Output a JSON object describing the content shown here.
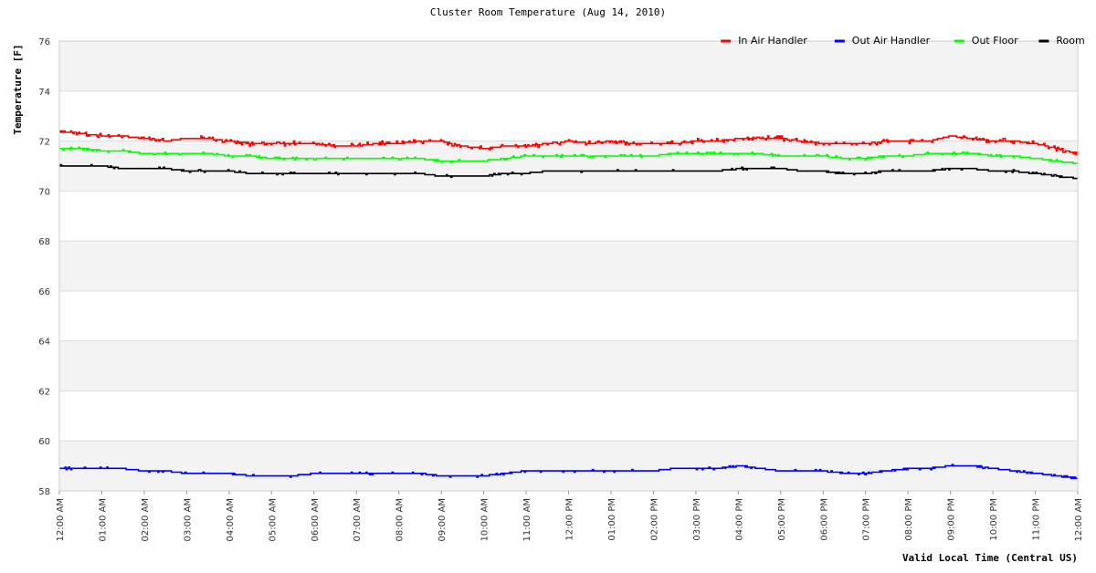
{
  "chart_data": {
    "type": "line",
    "title": "Cluster Room Temperature (Aug 14, 2010)",
    "xlabel": "Valid Local Time (Central US)",
    "ylabel": "Temperature [F]",
    "ylim": [
      58,
      76
    ],
    "yticks": [
      58,
      60,
      62,
      64,
      66,
      68,
      70,
      72,
      74,
      76
    ],
    "xlim": [
      0,
      24
    ],
    "xticks": [
      "12:00 AM",
      "01:00 AM",
      "02:00 AM",
      "03:00 AM",
      "04:00 AM",
      "05:00 AM",
      "06:00 AM",
      "07:00 AM",
      "08:00 AM",
      "09:00 AM",
      "10:00 AM",
      "11:00 AM",
      "12:00 PM",
      "01:00 PM",
      "02:00 PM",
      "03:00 PM",
      "04:00 PM",
      "05:00 PM",
      "06:00 PM",
      "07:00 PM",
      "08:00 PM",
      "09:00 PM",
      "10:00 PM",
      "11:00 PM",
      "12:00 AM"
    ],
    "legend_position": "top-right",
    "grid": "alternating horizontal bands",
    "series": [
      {
        "name": "In Air Handler",
        "color": "#ff0000",
        "x": [
          0,
          0.5,
          1,
          1.5,
          2,
          2.5,
          3,
          3.5,
          4,
          4.5,
          5,
          5.5,
          6,
          6.5,
          7,
          7.5,
          8,
          8.5,
          9,
          9.5,
          10,
          10.5,
          11,
          11.5,
          12,
          12.5,
          13,
          13.5,
          14,
          14.5,
          15,
          15.5,
          16,
          16.5,
          17,
          17.5,
          18,
          18.5,
          19,
          19.5,
          20,
          20.5,
          21,
          21.5,
          22,
          22.5,
          23,
          23.5,
          24
        ],
        "y": [
          72.4,
          72.3,
          72.2,
          72.2,
          72.1,
          72.0,
          72.1,
          72.1,
          72.0,
          71.9,
          71.9,
          71.9,
          71.9,
          71.8,
          71.8,
          71.9,
          71.9,
          72.0,
          72.0,
          71.8,
          71.7,
          71.8,
          71.8,
          71.9,
          72.0,
          71.9,
          72.0,
          71.9,
          71.9,
          71.9,
          72.0,
          72.0,
          72.1,
          72.1,
          72.1,
          72.0,
          71.9,
          71.9,
          71.9,
          72.0,
          72.0,
          72.0,
          72.2,
          72.1,
          72.0,
          72.0,
          71.9,
          71.7,
          71.5
        ]
      },
      {
        "name": "Out Air Handler",
        "color": "#0000ff",
        "x": [
          0,
          0.5,
          1,
          1.5,
          2,
          2.5,
          3,
          3.5,
          4,
          4.5,
          5,
          5.5,
          6,
          6.5,
          7,
          7.5,
          8,
          8.5,
          9,
          9.5,
          10,
          10.5,
          11,
          11.5,
          12,
          12.5,
          13,
          13.5,
          14,
          14.5,
          15,
          15.5,
          16,
          16.5,
          17,
          17.5,
          18,
          18.5,
          19,
          19.5,
          20,
          20.5,
          21,
          21.5,
          22,
          22.5,
          23,
          23.5,
          24
        ],
        "y": [
          58.9,
          58.9,
          58.9,
          58.9,
          58.8,
          58.8,
          58.7,
          58.7,
          58.7,
          58.6,
          58.6,
          58.6,
          58.7,
          58.7,
          58.7,
          58.7,
          58.7,
          58.7,
          58.6,
          58.6,
          58.6,
          58.7,
          58.8,
          58.8,
          58.8,
          58.8,
          58.8,
          58.8,
          58.8,
          58.9,
          58.9,
          58.9,
          59.0,
          58.9,
          58.8,
          58.8,
          58.8,
          58.7,
          58.7,
          58.8,
          58.9,
          58.9,
          59.0,
          59.0,
          58.9,
          58.8,
          58.7,
          58.6,
          58.5
        ]
      },
      {
        "name": "Out Floor",
        "color": "#00ff00",
        "x": [
          0,
          0.5,
          1,
          1.5,
          2,
          2.5,
          3,
          3.5,
          4,
          4.5,
          5,
          5.5,
          6,
          6.5,
          7,
          7.5,
          8,
          8.5,
          9,
          9.5,
          10,
          10.5,
          11,
          11.5,
          12,
          12.5,
          13,
          13.5,
          14,
          14.5,
          15,
          15.5,
          16,
          16.5,
          17,
          17.5,
          18,
          18.5,
          19,
          19.5,
          20,
          20.5,
          21,
          21.5,
          22,
          22.5,
          23,
          23.5,
          24
        ],
        "y": [
          71.7,
          71.7,
          71.6,
          71.6,
          71.5,
          71.5,
          71.5,
          71.5,
          71.4,
          71.4,
          71.3,
          71.3,
          71.3,
          71.3,
          71.3,
          71.3,
          71.3,
          71.3,
          71.2,
          71.2,
          71.2,
          71.3,
          71.4,
          71.4,
          71.4,
          71.4,
          71.4,
          71.4,
          71.4,
          71.5,
          71.5,
          71.5,
          71.5,
          71.5,
          71.4,
          71.4,
          71.4,
          71.3,
          71.3,
          71.4,
          71.4,
          71.5,
          71.5,
          71.5,
          71.4,
          71.4,
          71.3,
          71.2,
          71.1
        ]
      },
      {
        "name": "Room",
        "color": "#000000",
        "x": [
          0,
          0.5,
          1,
          1.5,
          2,
          2.5,
          3,
          3.5,
          4,
          4.5,
          5,
          5.5,
          6,
          6.5,
          7,
          7.5,
          8,
          8.5,
          9,
          9.5,
          10,
          10.5,
          11,
          11.5,
          12,
          12.5,
          13,
          13.5,
          14,
          14.5,
          15,
          15.5,
          16,
          16.5,
          17,
          17.5,
          18,
          18.5,
          19,
          19.5,
          20,
          20.5,
          21,
          21.5,
          22,
          22.5,
          23,
          23.5,
          24
        ],
        "y": [
          71.0,
          71.0,
          71.0,
          70.9,
          70.9,
          70.9,
          70.8,
          70.8,
          70.8,
          70.7,
          70.7,
          70.7,
          70.7,
          70.7,
          70.7,
          70.7,
          70.7,
          70.7,
          70.6,
          70.6,
          70.6,
          70.7,
          70.7,
          70.8,
          70.8,
          70.8,
          70.8,
          70.8,
          70.8,
          70.8,
          70.8,
          70.8,
          70.9,
          70.9,
          70.9,
          70.8,
          70.8,
          70.7,
          70.7,
          70.8,
          70.8,
          70.8,
          70.9,
          70.9,
          70.8,
          70.8,
          70.7,
          70.6,
          70.5
        ]
      }
    ]
  }
}
